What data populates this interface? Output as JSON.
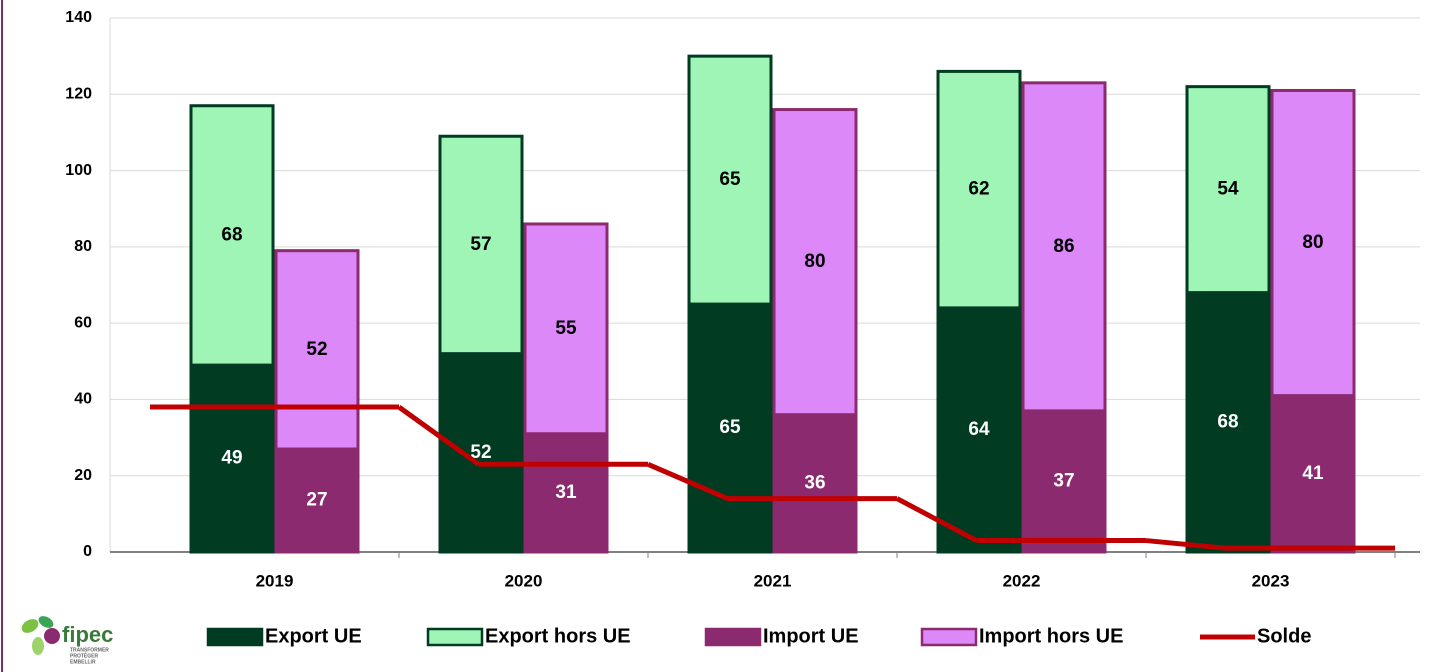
{
  "chart_data": {
    "type": "bar",
    "stacked": true,
    "categories": [
      "2019",
      "2020",
      "2021",
      "2022",
      "2023"
    ],
    "series": [
      {
        "name": "Export UE",
        "color": "#003b22",
        "stack": 0,
        "values": [
          49,
          52,
          65,
          64,
          68
        ]
      },
      {
        "name": "Export hors UE",
        "color": "#9ef5b5",
        "stack": 0,
        "values": [
          68,
          57,
          65,
          62,
          54
        ]
      },
      {
        "name": "Import UE",
        "color": "#8b2a6e",
        "stack": 1,
        "values": [
          27,
          31,
          36,
          37,
          41
        ]
      },
      {
        "name": "Import hors UE",
        "color": "#dd88f8",
        "stack": 1,
        "values": [
          52,
          55,
          80,
          86,
          80
        ]
      },
      {
        "name": "Solde",
        "type": "line",
        "color": "#c00000",
        "values": [
          38,
          23,
          14,
          3,
          1
        ]
      }
    ],
    "ylim": [
      0,
      140
    ],
    "yticks": [
      0,
      20,
      40,
      60,
      80,
      100,
      120,
      140
    ],
    "grid": true,
    "legend": "bottom"
  },
  "logo": {
    "name": "fipec",
    "tagline": [
      "TRANSFORMER",
      "PROTÉGER",
      "EMBELLIR"
    ]
  }
}
